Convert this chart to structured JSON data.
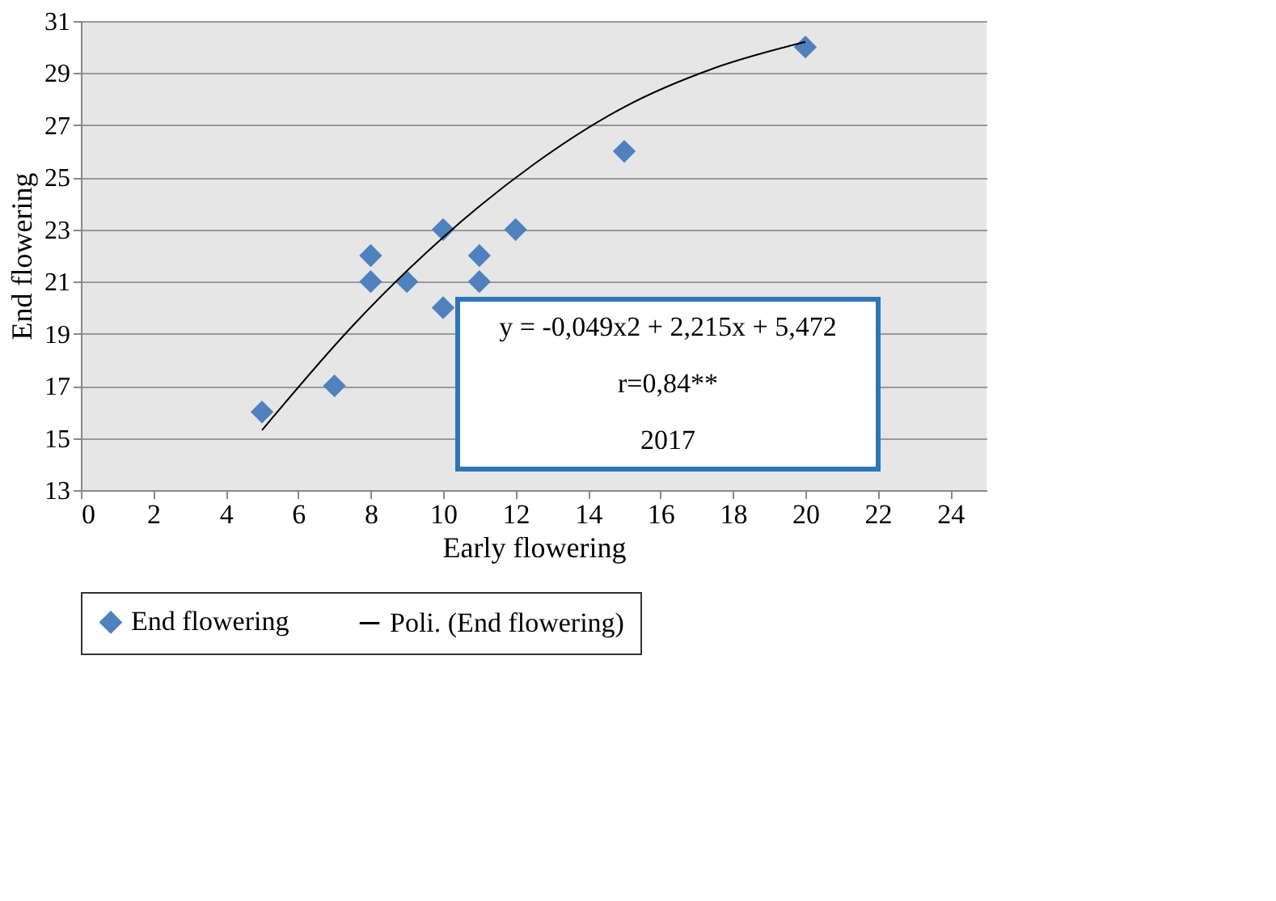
{
  "chart_data": {
    "type": "scatter",
    "xlabel": "Early   flowering",
    "ylabel": "End  flowering",
    "x": [
      5,
      7,
      8,
      8,
      9,
      10,
      10,
      11,
      11,
      12,
      15,
      20
    ],
    "series": [
      {
        "name": "End flowering",
        "color": "#4f81bd",
        "marker": "diamond",
        "values": [
          16,
          17,
          22,
          21,
          21,
          23,
          20,
          22,
          21,
          23,
          26,
          30
        ]
      },
      {
        "name": "Poli. (End flowering)",
        "type": "line",
        "color": "#000000",
        "line_style": "solid",
        "x": [
          5,
          7.5,
          10,
          12.5,
          15,
          17.5,
          20
        ],
        "values": [
          15.3,
          19.3,
          22.7,
          25.5,
          27.7,
          29.2,
          30.2
        ]
      }
    ],
    "annotations": [
      "y = -0,049x2 + 2,215x + 5,472",
      "r=0,84**",
      "2017"
    ],
    "xlim": [
      0,
      25
    ],
    "xticks": [
      0,
      2,
      4,
      6,
      8,
      10,
      12,
      14,
      16,
      18,
      20,
      22,
      24
    ],
    "ylim": [
      13,
      31
    ],
    "yticks": [
      13,
      15,
      17,
      19,
      21,
      23,
      25,
      27,
      29,
      31
    ],
    "grid": "y",
    "legend": "bottom"
  }
}
